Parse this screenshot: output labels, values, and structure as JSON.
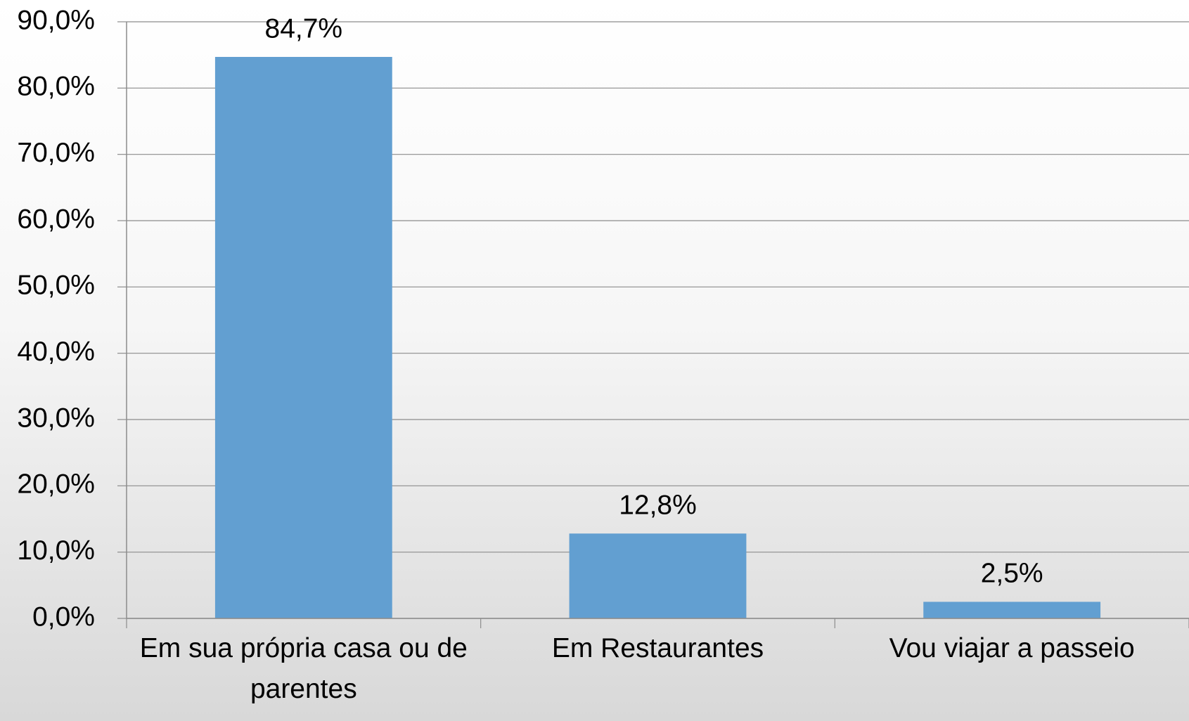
{
  "chart_data": {
    "type": "bar",
    "categories": [
      "Em sua própria casa ou de parentes",
      "Em Restaurantes",
      "Vou viajar a passeio"
    ],
    "values": [
      84.7,
      12.8,
      2.5
    ],
    "value_labels": [
      "84,7%",
      "12,8%",
      "2,5%"
    ],
    "color": "#629fd1",
    "ylim": [
      0,
      90
    ],
    "yticks": [
      {
        "value": 0,
        "label": "0,0%"
      },
      {
        "value": 10,
        "label": "10,0%"
      },
      {
        "value": 20,
        "label": "20,0%"
      },
      {
        "value": 30,
        "label": "30,0%"
      },
      {
        "value": 40,
        "label": "40,0%"
      },
      {
        "value": 50,
        "label": "50,0%"
      },
      {
        "value": 60,
        "label": "60,0%"
      },
      {
        "value": 70,
        "label": "70,0%"
      },
      {
        "value": 80,
        "label": "80,0%"
      },
      {
        "value": 90,
        "label": "90,0%"
      }
    ],
    "grid": true
  }
}
